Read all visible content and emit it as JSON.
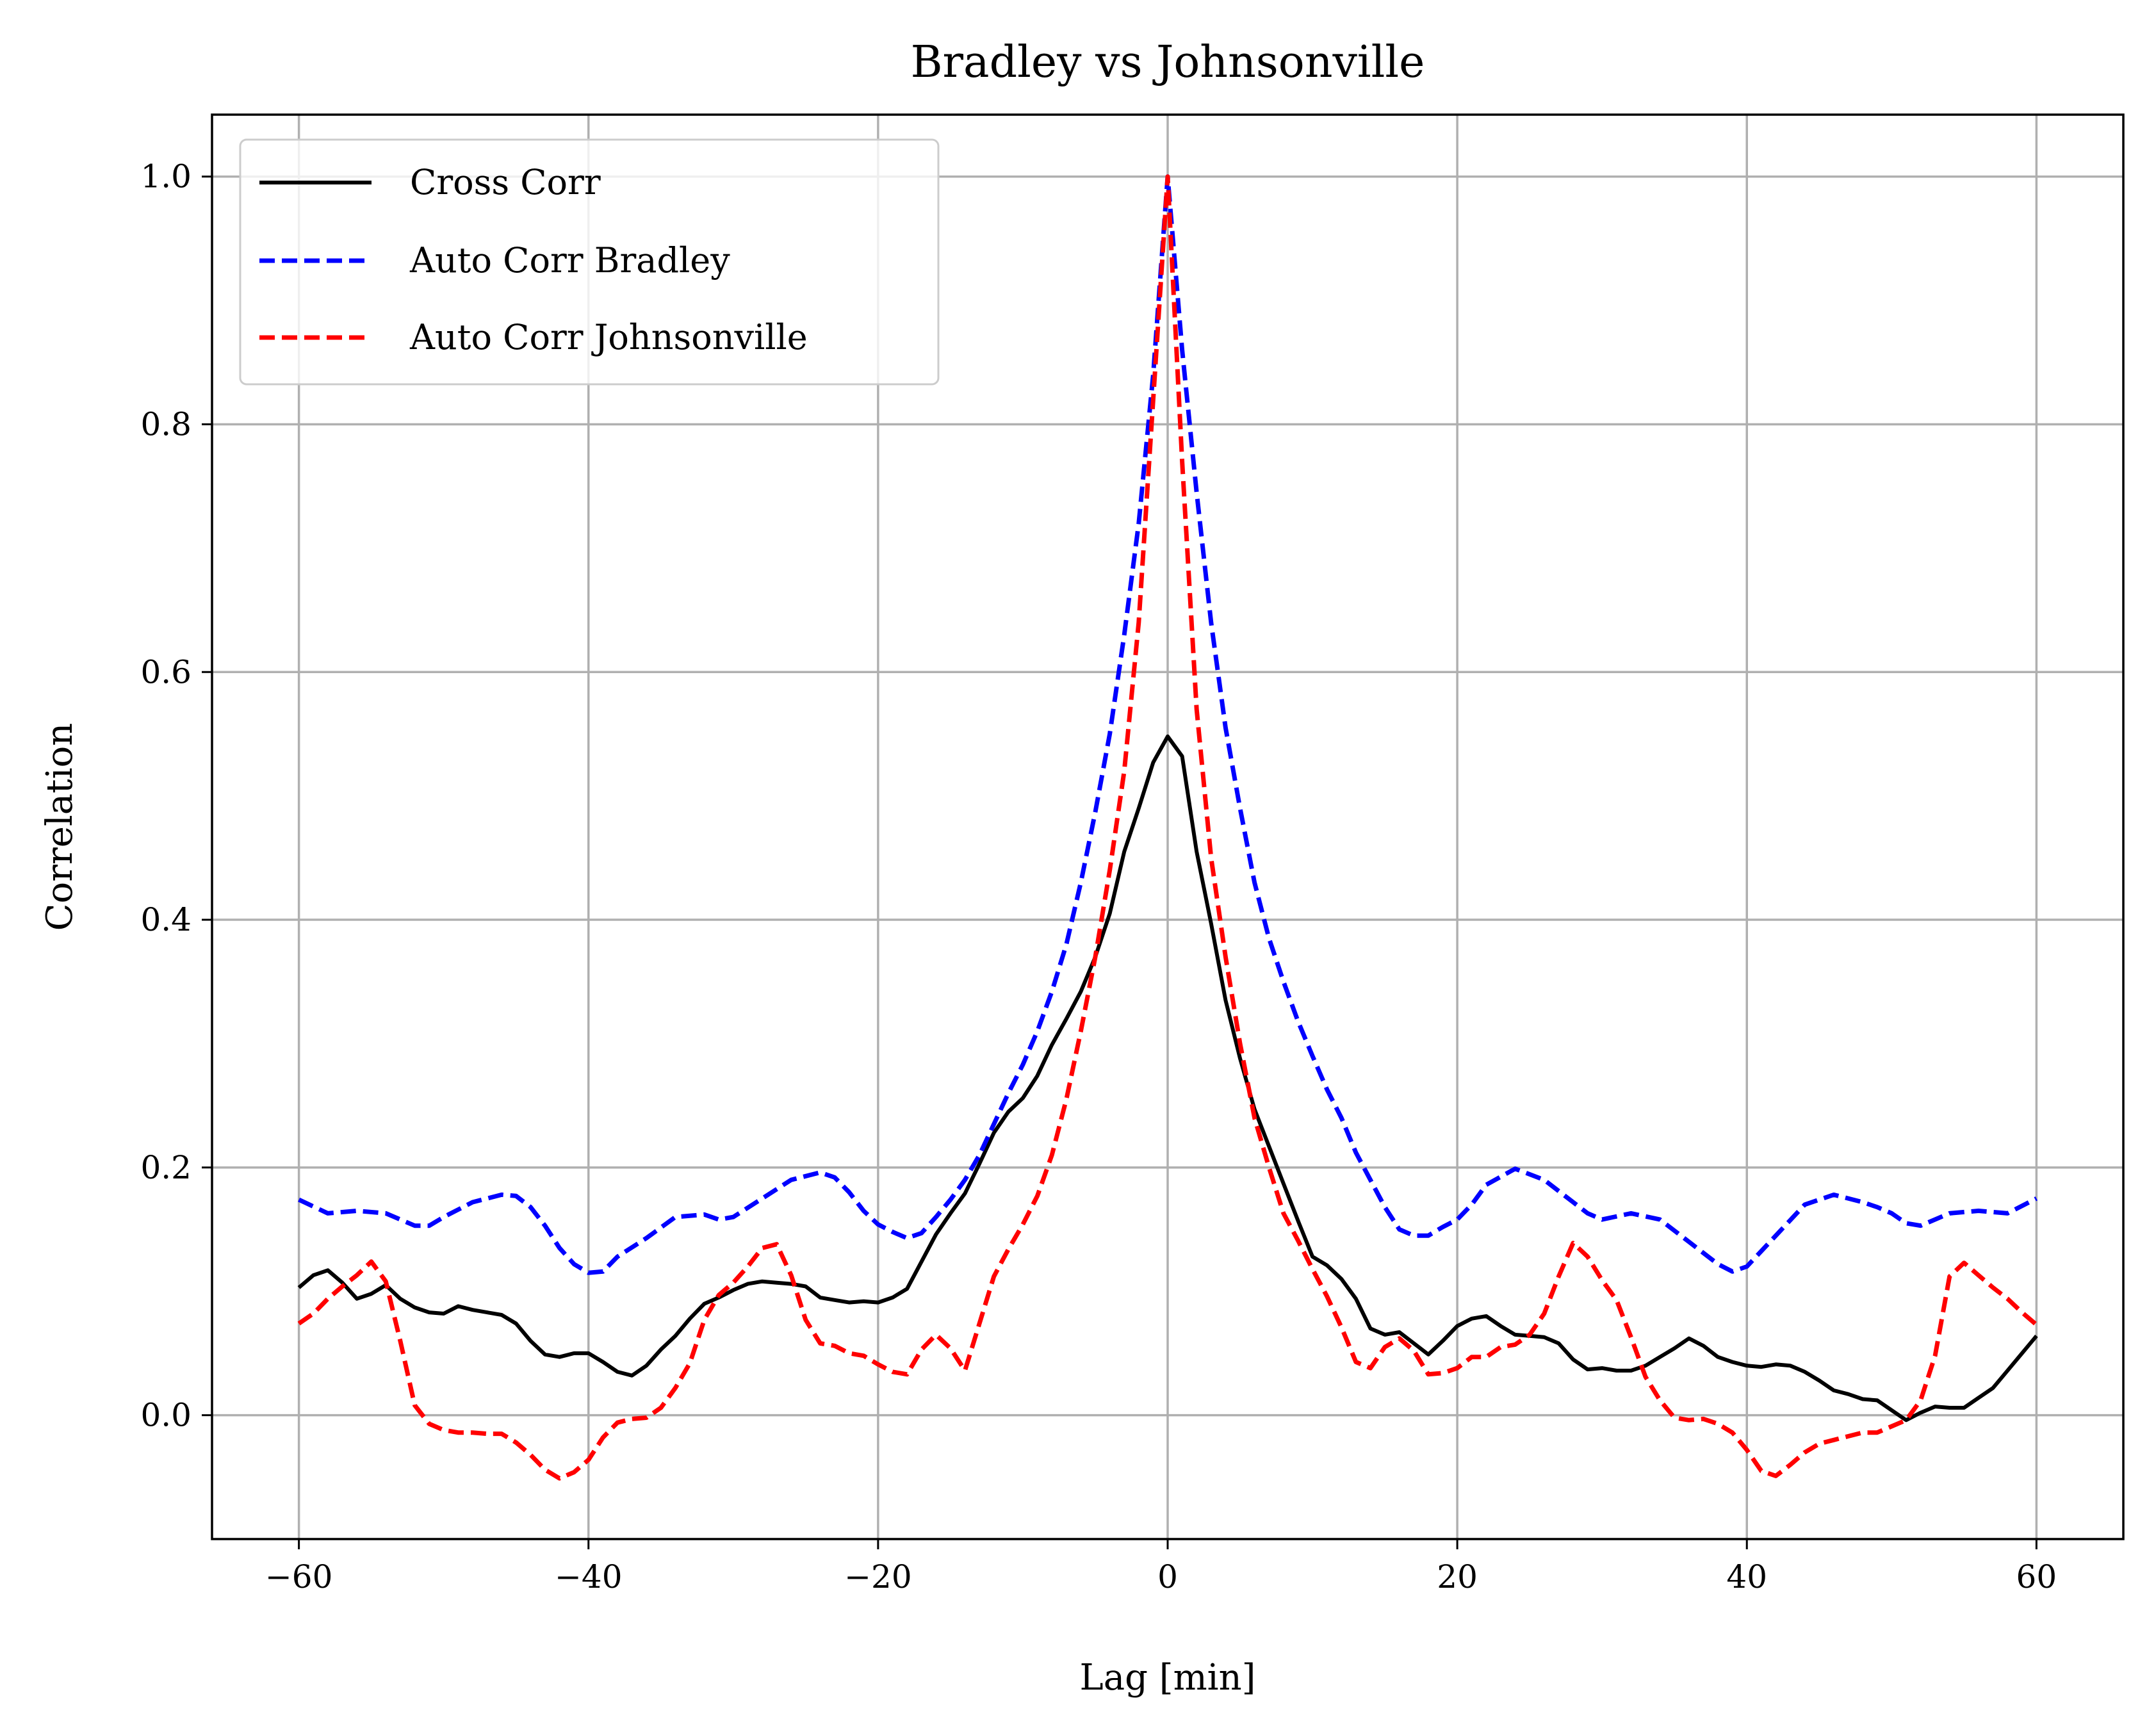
{
  "chart_data": {
    "type": "line",
    "title": "Bradley vs Johnsonville",
    "xlabel": "Lag [min]",
    "ylabel": "Correlation",
    "xlim": [
      -66,
      66
    ],
    "ylim": [
      -0.1,
      1.05
    ],
    "xticks": [
      -60,
      -40,
      -20,
      0,
      20,
      40,
      60
    ],
    "xtick_labels": [
      "−60",
      "−40",
      "−20",
      "0",
      "20",
      "40",
      "60"
    ],
    "yticks": [
      0.0,
      0.2,
      0.4,
      0.6,
      0.8,
      1.0
    ],
    "ytick_labels": [
      "0.0",
      "0.2",
      "0.4",
      "0.6",
      "0.8",
      "1.0"
    ],
    "grid": true,
    "legend_position": "top-left",
    "series": [
      {
        "name": "Cross Corr",
        "color": "#000000",
        "style": "solid",
        "x": [
          -60,
          -59,
          -58,
          -57,
          -56,
          -55,
          -54,
          -53,
          -52,
          -51,
          -50,
          -49,
          -48,
          -47,
          -46,
          -45,
          -44,
          -43,
          -42,
          -41,
          -40,
          -39,
          -38,
          -37,
          -36,
          -35,
          -34,
          -33,
          -32,
          -31,
          -30,
          -29,
          -28,
          -27,
          -26,
          -25,
          -24,
          -23,
          -22,
          -21,
          -20,
          -19,
          -18,
          -17,
          -16,
          -15,
          -14,
          -13,
          -12,
          -11,
          -10,
          -9,
          -8,
          -7,
          -6,
          -5,
          -4,
          -3,
          -2,
          -1,
          0,
          1,
          2,
          3,
          4,
          5,
          6,
          7,
          8,
          9,
          10,
          11,
          12,
          13,
          14,
          15,
          16,
          17,
          18,
          19,
          20,
          21,
          22,
          23,
          24,
          25,
          26,
          27,
          28,
          29,
          30,
          31,
          32,
          33,
          34,
          35,
          36,
          37,
          38,
          39,
          40,
          41,
          42,
          43,
          44,
          45,
          46,
          47,
          48,
          49,
          50,
          51,
          52,
          53,
          54,
          55,
          56,
          57,
          58,
          59,
          60
        ],
        "y": [
          0.103,
          0.113,
          0.117,
          0.107,
          0.094,
          0.098,
          0.105,
          0.094,
          0.087,
          0.083,
          0.082,
          0.088,
          0.085,
          0.083,
          0.081,
          0.074,
          0.06,
          0.049,
          0.047,
          0.05,
          0.05,
          0.043,
          0.035,
          0.032,
          0.04,
          0.053,
          0.064,
          0.078,
          0.09,
          0.095,
          0.101,
          0.106,
          0.108,
          0.107,
          0.106,
          0.104,
          0.095,
          0.093,
          0.091,
          0.092,
          0.091,
          0.095,
          0.102,
          0.124,
          0.146,
          0.163,
          0.179,
          0.203,
          0.228,
          0.245,
          0.256,
          0.274,
          0.299,
          0.32,
          0.342,
          0.37,
          0.405,
          0.455,
          0.49,
          0.527,
          0.548,
          0.532,
          0.455,
          0.397,
          0.335,
          0.288,
          0.247,
          0.217,
          0.187,
          0.157,
          0.128,
          0.121,
          0.11,
          0.094,
          0.07,
          0.065,
          0.067,
          0.058,
          0.049,
          0.06,
          0.072,
          0.078,
          0.08,
          0.072,
          0.065,
          0.064,
          0.063,
          0.058,
          0.045,
          0.037,
          0.038,
          0.036,
          0.036,
          0.04,
          0.047,
          0.054,
          0.062,
          0.056,
          0.047,
          0.043,
          0.04,
          0.039,
          0.041,
          0.04,
          0.035,
          0.028,
          0.02,
          0.017,
          0.013,
          0.012,
          0.004,
          -0.004,
          0.002,
          0.007,
          0.006,
          0.006,
          0.014,
          0.022,
          0.036,
          0.05,
          0.064
        ]
      },
      {
        "name": "Auto Corr Bradley",
        "color": "#0000ff",
        "style": "dashed",
        "x": [
          -60,
          -58,
          -56,
          -54,
          -52,
          -51,
          -50,
          -48,
          -46,
          -45,
          -44,
          -43,
          -42,
          -41,
          -40,
          -39,
          -38,
          -36,
          -34,
          -32,
          -31,
          -30,
          -28,
          -26,
          -24,
          -23,
          -22,
          -21,
          -20,
          -19,
          -18,
          -17,
          -16,
          -15,
          -14,
          -13,
          -12,
          -11,
          -10,
          -9,
          -8,
          -7,
          -6,
          -5,
          -4,
          -3,
          -2,
          -1,
          0,
          1,
          2,
          3,
          4,
          5,
          6,
          7,
          8,
          9,
          10,
          11,
          12,
          13,
          14,
          15,
          16,
          17,
          18,
          19,
          20,
          21,
          22,
          24,
          26,
          28,
          29,
          30,
          32,
          34,
          36,
          38,
          39,
          40,
          42,
          44,
          46,
          48,
          49,
          50,
          51,
          52,
          54,
          56,
          58,
          60
        ],
        "y": [
          0.174,
          0.163,
          0.165,
          0.163,
          0.153,
          0.153,
          0.16,
          0.172,
          0.178,
          0.177,
          0.168,
          0.153,
          0.135,
          0.122,
          0.115,
          0.116,
          0.128,
          0.143,
          0.16,
          0.162,
          0.158,
          0.16,
          0.175,
          0.19,
          0.196,
          0.192,
          0.18,
          0.165,
          0.154,
          0.148,
          0.143,
          0.147,
          0.16,
          0.174,
          0.19,
          0.21,
          0.235,
          0.26,
          0.283,
          0.31,
          0.342,
          0.38,
          0.43,
          0.487,
          0.55,
          0.63,
          0.72,
          0.84,
          1.0,
          0.86,
          0.745,
          0.64,
          0.555,
          0.49,
          0.43,
          0.385,
          0.35,
          0.318,
          0.29,
          0.263,
          0.24,
          0.212,
          0.19,
          0.168,
          0.15,
          0.145,
          0.145,
          0.152,
          0.158,
          0.17,
          0.186,
          0.199,
          0.19,
          0.172,
          0.163,
          0.158,
          0.163,
          0.158,
          0.14,
          0.122,
          0.116,
          0.12,
          0.145,
          0.17,
          0.178,
          0.172,
          0.168,
          0.163,
          0.155,
          0.153,
          0.163,
          0.165,
          0.163,
          0.175
        ]
      },
      {
        "name": "Auto Corr Johnsonville",
        "color": "#ff0000",
        "style": "dashed",
        "x": [
          -60,
          -59,
          -58,
          -57,
          -56,
          -55,
          -54,
          -53,
          -52,
          -51,
          -50,
          -49,
          -48,
          -47,
          -46,
          -45,
          -44,
          -43,
          -42,
          -41,
          -40,
          -39,
          -38,
          -37,
          -36,
          -35,
          -34,
          -33,
          -32,
          -31,
          -30,
          -29,
          -28,
          -27,
          -26,
          -25,
          -24,
          -23,
          -22,
          -21,
          -20,
          -19,
          -18,
          -17,
          -16,
          -15,
          -14,
          -13,
          -12,
          -11,
          -10,
          -9,
          -8,
          -7,
          -6,
          -5,
          -4,
          -3,
          -2,
          -1,
          0,
          1,
          2,
          3,
          4,
          5,
          6,
          7,
          8,
          9,
          10,
          11,
          12,
          13,
          14,
          15,
          16,
          17,
          18,
          19,
          20,
          21,
          22,
          23,
          24,
          25,
          26,
          27,
          28,
          29,
          30,
          31,
          32,
          33,
          34,
          35,
          36,
          37,
          38,
          39,
          40,
          41,
          42,
          43,
          44,
          45,
          46,
          47,
          48,
          49,
          50,
          51,
          52,
          53,
          54,
          55,
          56,
          57,
          58,
          59,
          60
        ],
        "y": [
          0.074,
          0.082,
          0.094,
          0.104,
          0.113,
          0.124,
          0.108,
          0.06,
          0.008,
          -0.007,
          -0.012,
          -0.014,
          -0.014,
          -0.015,
          -0.015,
          -0.022,
          -0.032,
          -0.044,
          -0.051,
          -0.046,
          -0.036,
          -0.018,
          -0.006,
          -0.003,
          -0.002,
          0.006,
          0.022,
          0.042,
          0.077,
          0.097,
          0.107,
          0.12,
          0.135,
          0.138,
          0.113,
          0.077,
          0.058,
          0.056,
          0.05,
          0.048,
          0.041,
          0.035,
          0.033,
          0.053,
          0.065,
          0.054,
          0.036,
          0.074,
          0.112,
          0.134,
          0.154,
          0.177,
          0.21,
          0.255,
          0.31,
          0.37,
          0.44,
          0.52,
          0.64,
          0.82,
          1.0,
          0.77,
          0.57,
          0.45,
          0.37,
          0.3,
          0.24,
          0.2,
          0.163,
          0.141,
          0.118,
          0.096,
          0.071,
          0.043,
          0.038,
          0.055,
          0.062,
          0.052,
          0.033,
          0.034,
          0.038,
          0.047,
          0.047,
          0.055,
          0.057,
          0.065,
          0.082,
          0.112,
          0.139,
          0.128,
          0.109,
          0.093,
          0.063,
          0.031,
          0.012,
          -0.002,
          -0.004,
          -0.003,
          -0.007,
          -0.014,
          -0.028,
          -0.045,
          -0.049,
          -0.04,
          -0.03,
          -0.023,
          -0.02,
          -0.017,
          -0.014,
          -0.014,
          -0.009,
          -0.004,
          0.012,
          0.048,
          0.112,
          0.123,
          0.113,
          0.103,
          0.094,
          0.083,
          0.073
        ]
      }
    ]
  }
}
